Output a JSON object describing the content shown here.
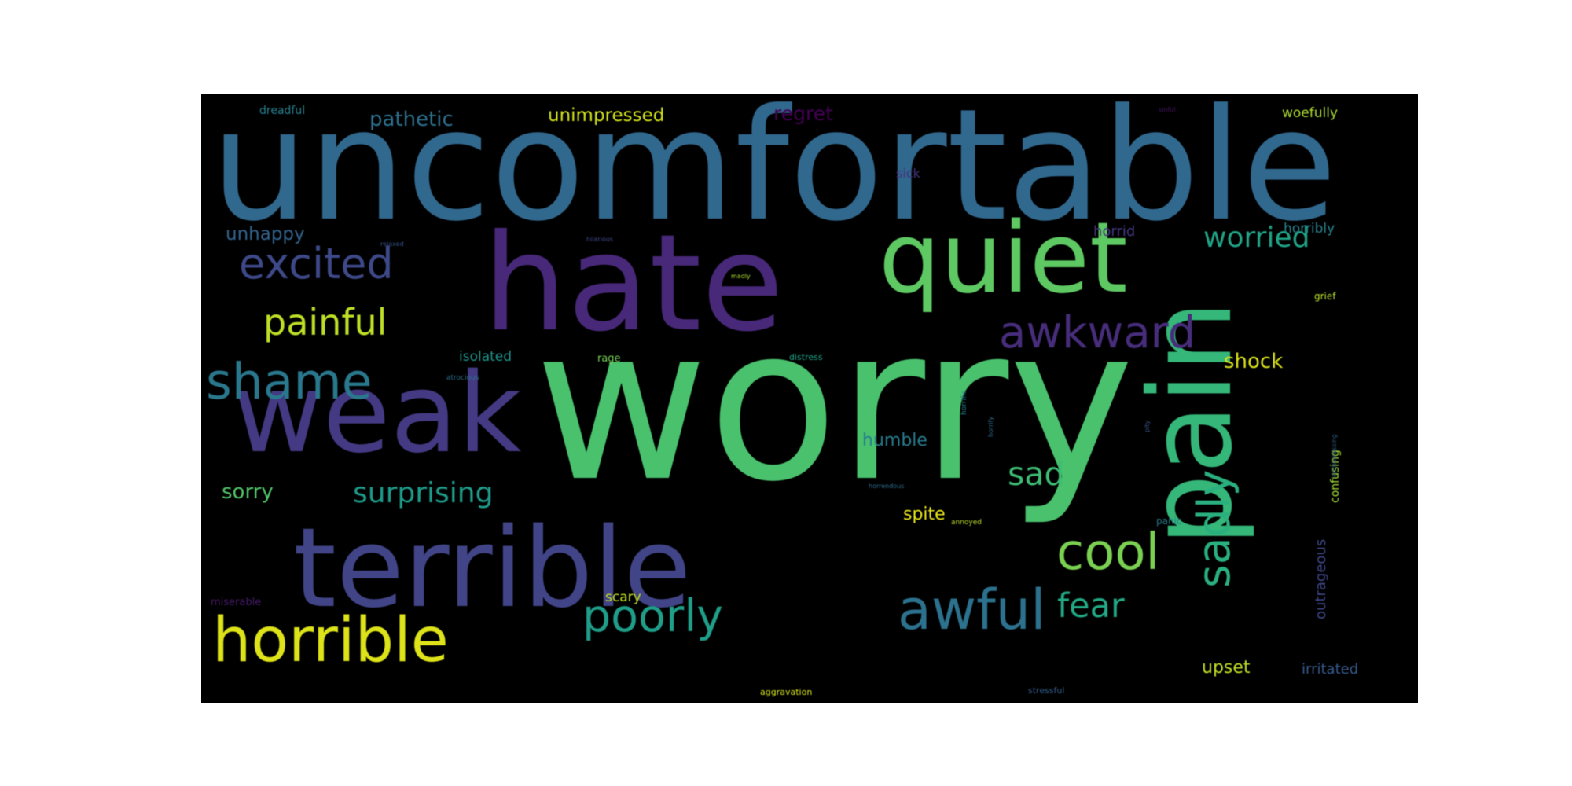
{
  "colors": {
    "background": "#ffffff",
    "panel": "#000000"
  },
  "words": [
    {
      "text": "uncomfortable",
      "color": "#31688e"
    },
    {
      "text": "worry",
      "color": "#4ac16d"
    },
    {
      "text": "hate",
      "color": "#482878"
    },
    {
      "text": "quiet",
      "color": "#5ec962"
    },
    {
      "text": "terrible",
      "color": "#414487"
    },
    {
      "text": "weak",
      "color": "#443a83"
    },
    {
      "text": "pain",
      "color": "#35b779"
    },
    {
      "text": "horrible",
      "color": "#dde318"
    },
    {
      "text": "shame",
      "color": "#2a788e"
    },
    {
      "text": "excited",
      "color": "#3e4989"
    },
    {
      "text": "awkward",
      "color": "#472d7b"
    },
    {
      "text": "painful",
      "color": "#bddf26"
    },
    {
      "text": "cool",
      "color": "#7ad151"
    },
    {
      "text": "awful",
      "color": "#2c728e"
    },
    {
      "text": "poorly",
      "color": "#1f9e89"
    },
    {
      "text": "sadly",
      "color": "#2ab07f"
    },
    {
      "text": "fear",
      "color": "#22a884"
    },
    {
      "text": "surprising",
      "color": "#1e9b8a"
    },
    {
      "text": "sad",
      "color": "#3dbc74"
    },
    {
      "text": "worried",
      "color": "#20a386"
    },
    {
      "text": "pathetic",
      "color": "#2d708e"
    },
    {
      "text": "unimpressed",
      "color": "#d2e21b"
    },
    {
      "text": "regret",
      "color": "#440154"
    },
    {
      "text": "sorry",
      "color": "#52c569"
    },
    {
      "text": "shock",
      "color": "#d8e219"
    },
    {
      "text": "unhappy",
      "color": "#33638d"
    },
    {
      "text": "humble",
      "color": "#287d8e"
    },
    {
      "text": "spite",
      "color": "#e7e419"
    },
    {
      "text": "outrageous",
      "color": "#3f4788"
    },
    {
      "text": "confusing",
      "color": "#a2da37"
    },
    {
      "text": "upset",
      "color": "#c2df23"
    },
    {
      "text": "irritated",
      "color": "#375a8c"
    },
    {
      "text": "horrid",
      "color": "#453781"
    },
    {
      "text": "horribly",
      "color": "#25848e"
    },
    {
      "text": "woefully",
      "color": "#addc30"
    },
    {
      "text": "isolated",
      "color": "#1f958b"
    },
    {
      "text": "scary",
      "color": "#c5e021"
    },
    {
      "text": "dreadful",
      "color": "#277f8e"
    },
    {
      "text": "sick",
      "color": "#46327e"
    },
    {
      "text": "grief",
      "color": "#b5de2b"
    },
    {
      "text": "rage",
      "color": "#75d054"
    },
    {
      "text": "panic",
      "color": "#287c8e"
    },
    {
      "text": "miserable",
      "color": "#481a6c"
    },
    {
      "text": "stressful",
      "color": "#355f8d"
    },
    {
      "text": "aggravation",
      "color": "#d5e21a"
    },
    {
      "text": "annoyed",
      "color": "#bade28"
    },
    {
      "text": "horrific",
      "color": "#26828e"
    },
    {
      "text": "horrendous",
      "color": "#2e6e8e"
    },
    {
      "text": "distress",
      "color": "#1fa287"
    },
    {
      "text": "atrocious",
      "color": "#2d718e"
    },
    {
      "text": "embarrassing",
      "color": "#33638d"
    },
    {
      "text": "hilarious",
      "color": "#404688"
    },
    {
      "text": "relaxed",
      "color": "#3b528b"
    },
    {
      "text": "madly",
      "color": "#addc30"
    },
    {
      "text": "pity",
      "color": "#39568c"
    },
    {
      "text": "sinful",
      "color": "#481467"
    },
    {
      "text": "horrify",
      "color": "#2e6f8e"
    }
  ]
}
